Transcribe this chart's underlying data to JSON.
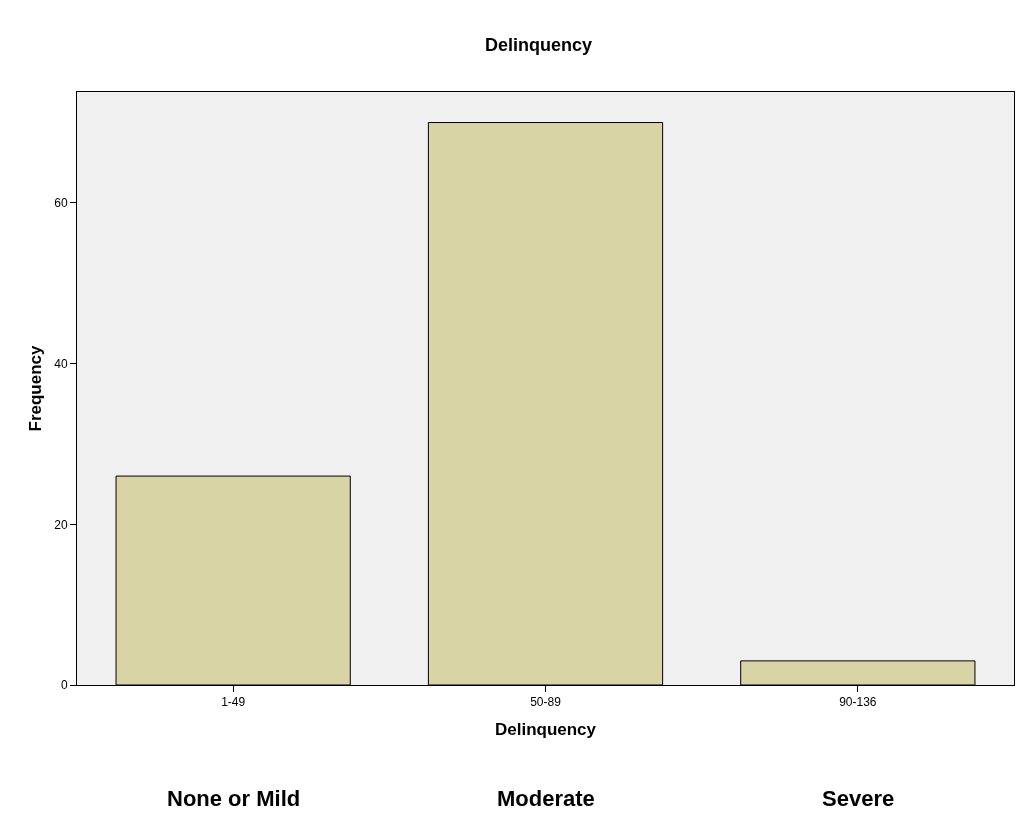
{
  "chart_data": {
    "type": "bar",
    "title": "Delinquency",
    "xlabel": "Delinquency",
    "ylabel": "Frequency",
    "categories": [
      "1-49",
      "50-89",
      "90-136"
    ],
    "values": [
      26,
      70,
      3
    ],
    "color": "#d9d4a6",
    "ylim": [
      0,
      73.8
    ],
    "yticks": [
      0,
      20,
      40,
      60
    ],
    "grid": false,
    "legend": false,
    "annotations": [
      "None or Mild",
      "Moderate",
      "Severe"
    ]
  }
}
